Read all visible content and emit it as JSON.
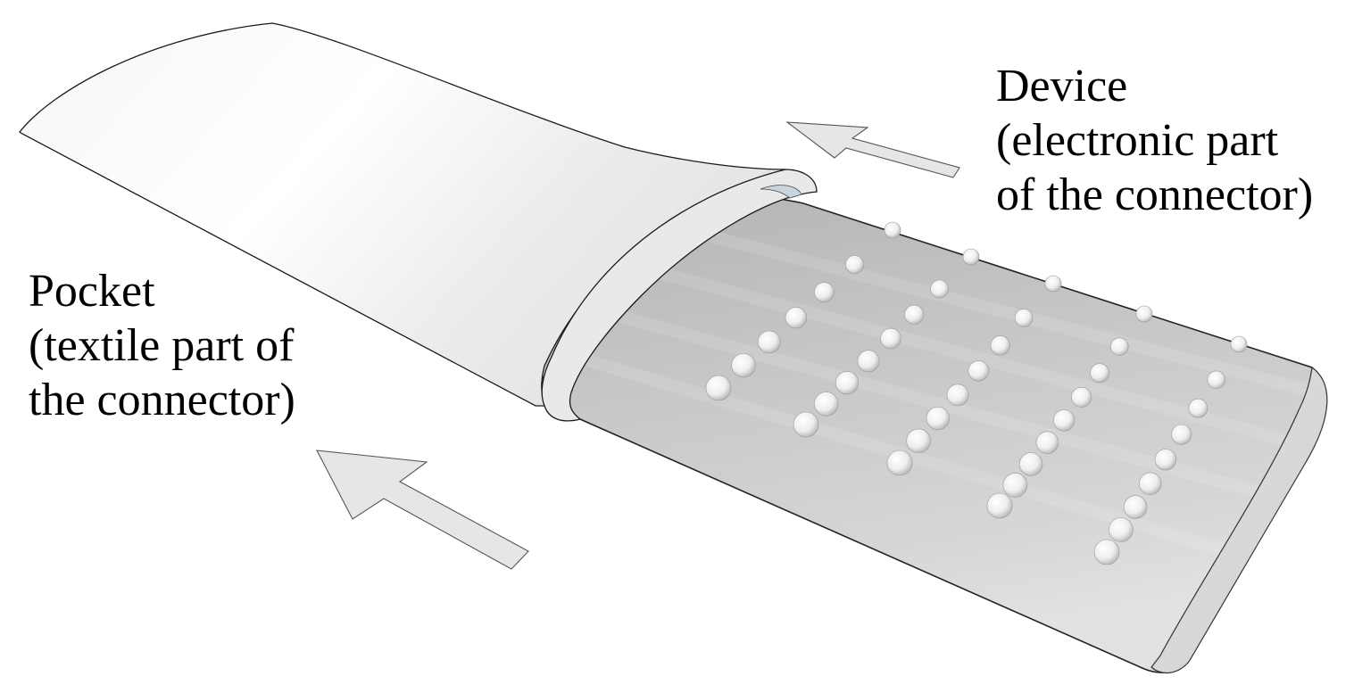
{
  "labels": {
    "device": {
      "line1": "Device",
      "line2": "(electronic part",
      "line3": "of the connector)"
    },
    "pocket": {
      "line1": "Pocket",
      "line2": "(textile part of",
      "line3": "the connector)"
    }
  },
  "colors": {
    "background": "#ffffff",
    "pocket_fabric": "#f2f2f2",
    "device_body": "#c8c8c8",
    "arrow_fill": "#e6e6e6",
    "outline": "#111111"
  },
  "icons": {
    "insertion_arrows": "arrow-up-left-icon",
    "contacts": "contact-dot-icon"
  },
  "contact_rows": 5
}
